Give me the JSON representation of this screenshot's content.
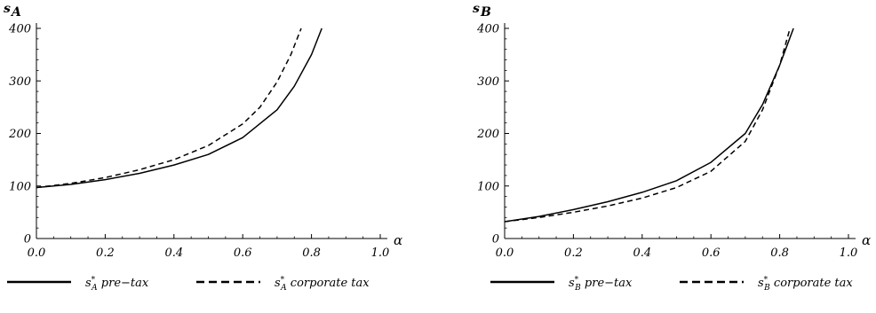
{
  "chart_data": [
    {
      "type": "line",
      "ylabel": "s_A",
      "xlabel": "α",
      "xlim": [
        0,
        1.0
      ],
      "ylim": [
        0,
        400
      ],
      "x_ticks": [
        "0.0",
        "0.2",
        "0.4",
        "0.6",
        "0.8",
        "1.0"
      ],
      "y_ticks": [
        "0",
        "100",
        "200",
        "300",
        "400"
      ],
      "legend_position": "bottom",
      "series": [
        {
          "name": "s*A pre−tax",
          "style": "solid",
          "x": [
            0.0,
            0.1,
            0.2,
            0.3,
            0.4,
            0.5,
            0.6,
            0.7,
            0.75,
            0.8,
            0.83
          ],
          "y": [
            97,
            103,
            112,
            124,
            140,
            160,
            192,
            245,
            290,
            350,
            400
          ]
        },
        {
          "name": "s*A corporate tax",
          "style": "dashed",
          "x": [
            0.0,
            0.1,
            0.2,
            0.3,
            0.4,
            0.5,
            0.6,
            0.65,
            0.7,
            0.74,
            0.77
          ],
          "y": [
            97,
            105,
            116,
            131,
            150,
            177,
            218,
            250,
            298,
            350,
            400
          ]
        }
      ]
    },
    {
      "type": "line",
      "ylabel": "s_B",
      "xlabel": "α",
      "xlim": [
        0,
        1.0
      ],
      "ylim": [
        0,
        400
      ],
      "x_ticks": [
        "0.0",
        "0.2",
        "0.4",
        "0.6",
        "0.8",
        "1.0"
      ],
      "y_ticks": [
        "0",
        "100",
        "200",
        "300",
        "400"
      ],
      "legend_position": "bottom",
      "series": [
        {
          "name": "s*B pre−tax",
          "style": "solid",
          "x": [
            0.0,
            0.1,
            0.2,
            0.3,
            0.4,
            0.5,
            0.6,
            0.7,
            0.75,
            0.8,
            0.84
          ],
          "y": [
            32,
            42,
            55,
            70,
            88,
            110,
            145,
            200,
            255,
            330,
            400
          ]
        },
        {
          "name": "s*B corporate tax",
          "style": "dashed",
          "x": [
            0.0,
            0.1,
            0.2,
            0.3,
            0.4,
            0.5,
            0.6,
            0.7,
            0.75,
            0.8,
            0.83
          ],
          "y": [
            32,
            40,
            50,
            62,
            77,
            97,
            128,
            185,
            245,
            330,
            400
          ]
        }
      ]
    }
  ]
}
